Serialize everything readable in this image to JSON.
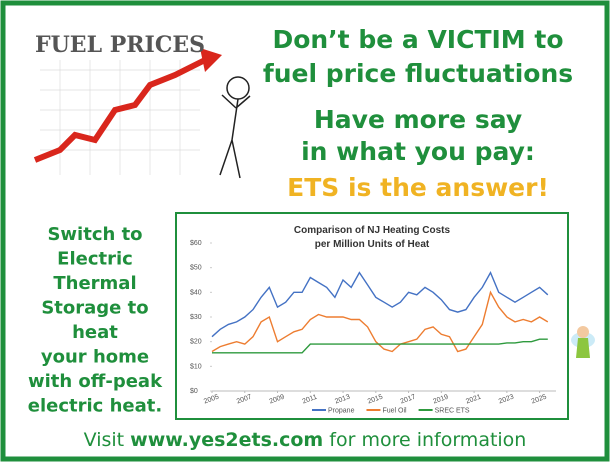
{
  "graphic": {
    "label": "FUEL PRICES"
  },
  "headline": {
    "lines": [
      "Don’t be a VICTIM to",
      "fuel price fluctuations",
      "Have more say",
      "in what you pay:"
    ],
    "answer": "ETS is the answer!"
  },
  "side_text": [
    "Switch to",
    "Electric",
    "Thermal",
    "Storage to",
    "heat",
    "your home",
    "with off-peak",
    "electric heat."
  ],
  "footer": {
    "before": "Visit ",
    "url": "www.yes2ets.com",
    "after": " for more information"
  },
  "chart_data": {
    "type": "line",
    "title": [
      "Comparison of NJ Heating Costs",
      "per Million Units of Heat"
    ],
    "x": [
      2005,
      2005.5,
      2006,
      2006.5,
      2007,
      2007.5,
      2008,
      2008.5,
      2009,
      2009.5,
      2010,
      2010.5,
      2011,
      2011.5,
      2012,
      2012.5,
      2013,
      2013.5,
      2014,
      2014.5,
      2015,
      2015.5,
      2016,
      2016.5,
      2017,
      2017.5,
      2018,
      2018.5,
      2019,
      2019.5,
      2020,
      2020.5,
      2021,
      2021.5,
      2022,
      2022.5,
      2023,
      2023.5,
      2024,
      2024.5,
      2025,
      2025.5
    ],
    "series": [
      {
        "name": "Propane",
        "color": "#4472c4",
        "values": [
          22,
          25,
          27,
          28,
          30,
          33,
          38,
          42,
          34,
          36,
          40,
          40,
          46,
          44,
          42,
          38,
          45,
          42,
          48,
          43,
          38,
          36,
          34,
          36,
          40,
          39,
          42,
          40,
          37,
          33,
          32,
          33,
          38,
          42,
          48,
          40,
          38,
          36,
          38,
          40,
          42,
          39
        ]
      },
      {
        "name": "Fuel Oil",
        "color": "#ed7d31",
        "values": [
          16,
          18,
          19,
          20,
          19,
          22,
          28,
          30,
          20,
          22,
          24,
          25,
          29,
          31,
          30,
          30,
          30,
          29,
          29,
          26,
          20,
          17,
          16,
          19,
          20,
          21,
          25,
          26,
          23,
          22,
          16,
          17,
          22,
          27,
          40,
          34,
          30,
          28,
          29,
          28,
          30,
          28
        ]
      },
      {
        "name": "SREC ETS",
        "color": "#2e9a3e",
        "values": [
          15.5,
          15.5,
          15.5,
          15.5,
          15.5,
          15.5,
          15.5,
          15.5,
          15.5,
          15.5,
          15.5,
          15.5,
          19,
          19,
          19,
          19,
          19,
          19,
          19,
          19,
          19,
          19,
          19,
          19,
          19,
          19,
          19,
          19,
          19,
          19,
          19,
          19,
          19,
          19,
          19,
          19,
          19.5,
          19.5,
          20,
          20,
          21,
          21
        ]
      }
    ],
    "xlim": [
      2005,
      2026
    ],
    "xticks": [
      2005,
      2007,
      2009,
      2011,
      2013,
      2015,
      2017,
      2019,
      2021,
      2023,
      2025
    ],
    "ylim": [
      0,
      60
    ],
    "yticks": [
      {
        "value": 0,
        "label": "$0"
      },
      {
        "value": 10,
        "label": "$10"
      },
      {
        "value": 20,
        "label": "$20"
      },
      {
        "value": 30,
        "label": "$30"
      },
      {
        "value": 40,
        "label": "$40"
      },
      {
        "value": 50,
        "label": "$50"
      },
      {
        "value": 60,
        "label": "$60"
      }
    ]
  }
}
